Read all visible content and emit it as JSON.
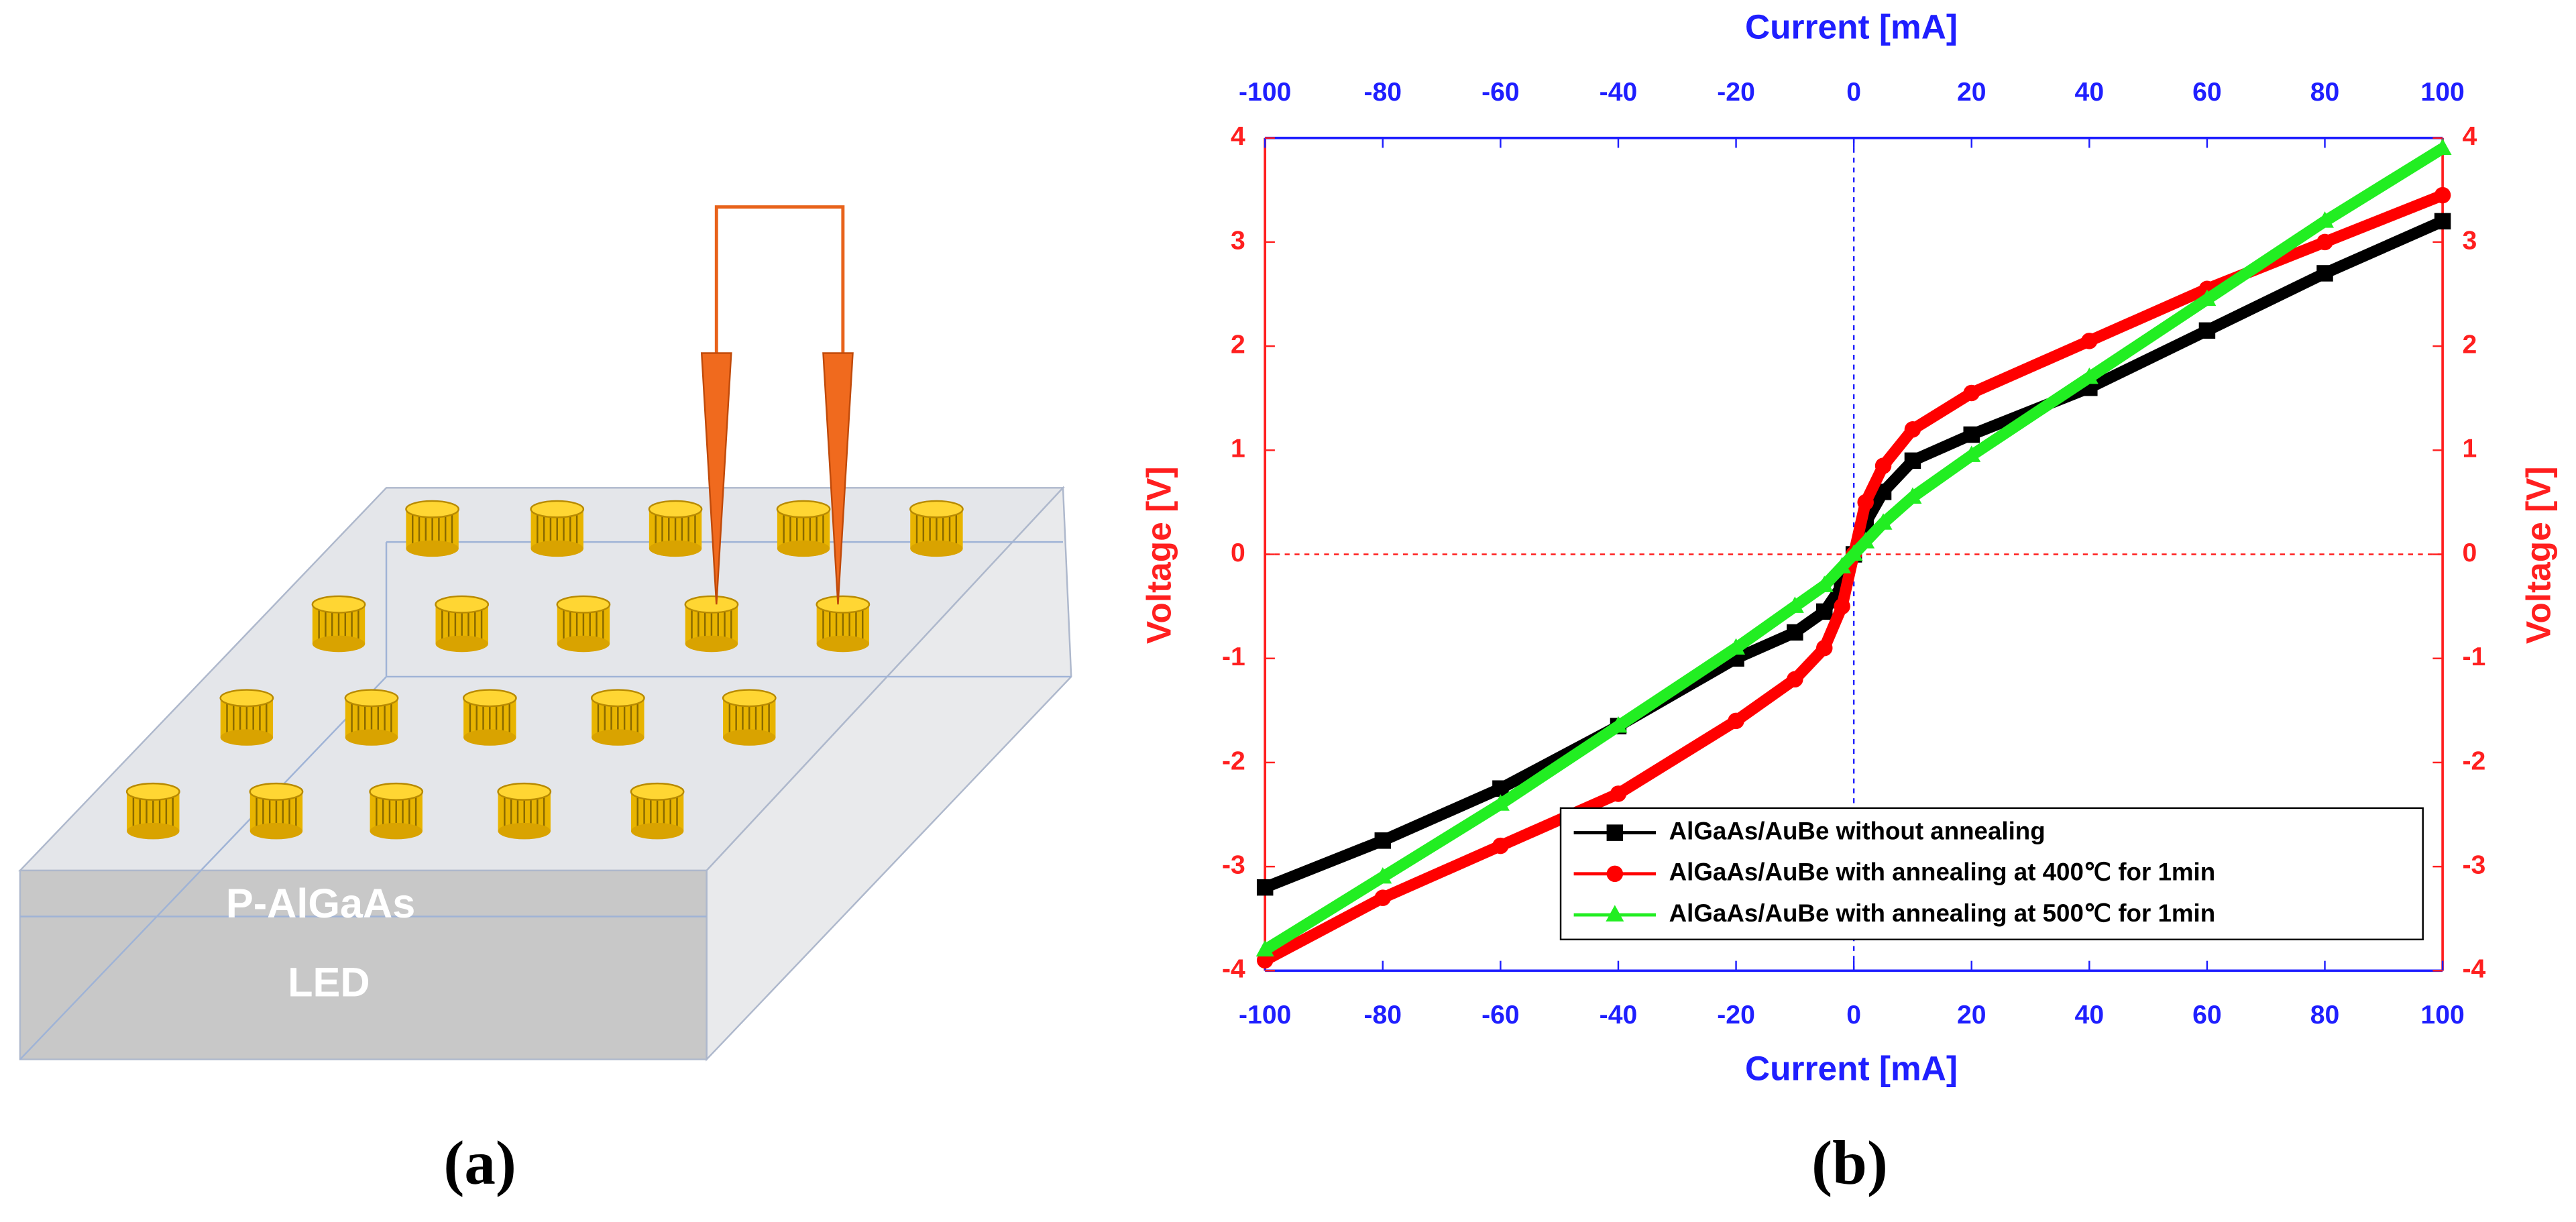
{
  "panel_a": {
    "layer_labels": [
      "P-AlGaAs",
      "LED"
    ]
  },
  "captions": [
    "(a)",
    "(b)"
  ],
  "chart_data": {
    "type": "line",
    "x_label": "Current [mA]",
    "y_label": "Voltage [V]",
    "x_axis_color": "#1f1fff",
    "y_axis_color": "#ff1f1f",
    "x": [
      -100,
      -80,
      -60,
      -40,
      -20,
      -10,
      -5,
      -2,
      0,
      2,
      5,
      10,
      20,
      40,
      60,
      80,
      100
    ],
    "series": [
      {
        "name": "AlGaAs/AuBe without annealing",
        "color": "#000000",
        "marker": "square",
        "values": [
          -3.2,
          -2.75,
          -2.25,
          -1.65,
          -1.0,
          -0.75,
          -0.55,
          -0.3,
          0,
          0.3,
          0.6,
          0.9,
          1.15,
          1.6,
          2.15,
          2.7,
          3.2
        ]
      },
      {
        "name": "AlGaAs/AuBe with annealing at 400℃ for 1min",
        "color": "#ff0000",
        "marker": "circle",
        "values": [
          -3.9,
          -3.3,
          -2.8,
          -2.3,
          -1.6,
          -1.2,
          -0.9,
          -0.5,
          0,
          0.5,
          0.85,
          1.2,
          1.55,
          2.05,
          2.55,
          3.0,
          3.45
        ]
      },
      {
        "name": "AlGaAs/AuBe with annealing at 500℃ for 1min",
        "color": "#22ee22",
        "marker": "triangle",
        "values": [
          -3.8,
          -3.1,
          -2.4,
          -1.65,
          -0.9,
          -0.5,
          -0.3,
          -0.12,
          0,
          0.12,
          0.3,
          0.55,
          0.95,
          1.7,
          2.45,
          3.2,
          3.9
        ]
      }
    ],
    "xlim": [
      -100,
      100
    ],
    "ylim": [
      -4,
      4
    ],
    "xticks": [
      -100,
      -80,
      -60,
      -40,
      -20,
      0,
      20,
      40,
      60,
      80,
      100
    ],
    "yticks": [
      -4,
      -3,
      -2,
      -1,
      0,
      1,
      2,
      3,
      4
    ],
    "zero_lines": true,
    "legend": "lower right"
  }
}
